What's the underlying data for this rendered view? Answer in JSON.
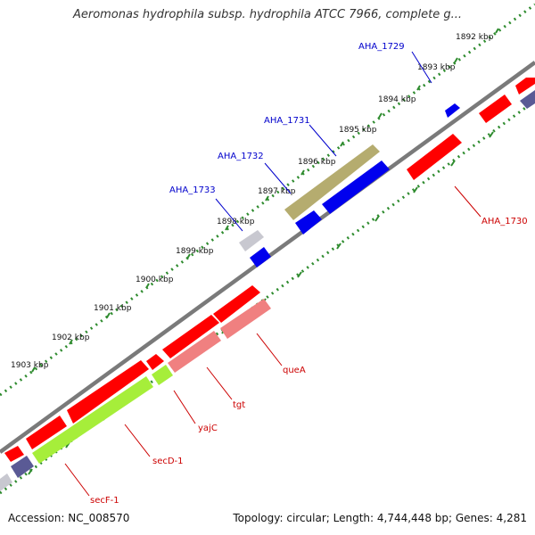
{
  "title": "Aeromonas hydrophila subsp. hydrophila ATCC 7966, complete g...",
  "footer": {
    "accession": "Accession: NC_008570",
    "summary": "Topology: circular; Length: 4,744,448 bp; Genes: 4,281"
  },
  "colors": {
    "backbone": "#7a7a7a",
    "tick": "#2e8b2e",
    "red_gene": "#ff0000",
    "pink_gene": "#f08080",
    "blue_gene": "#0000ee",
    "olive_gene": "#b5ac6f",
    "green_gene": "#a6ee3a",
    "navy_gene": "#5a5a95",
    "gray_gene": "#c8c8d0",
    "blue_label": "#0000cc",
    "red_label": "#cc0000"
  },
  "kbp_ticks": [
    "1892 kbp",
    "1893 kbp",
    "1894 kbp",
    "1895 kbp",
    "1896 kbp",
    "1897 kbp",
    "1898 kbp",
    "1899 kbp",
    "1900 kbp",
    "1901 kbp",
    "1902 kbp",
    "1903 kbp"
  ],
  "gene_labels": {
    "AHA_1729": "AHA_1729",
    "AHA_1731": "AHA_1731",
    "AHA_1732": "AHA_1732",
    "AHA_1733": "AHA_1733",
    "AHA_1730": "AHA_1730",
    "queA": "queA",
    "tgt": "tgt",
    "yajC": "yajC",
    "secD": "secD-1",
    "secF": "secF-1"
  }
}
